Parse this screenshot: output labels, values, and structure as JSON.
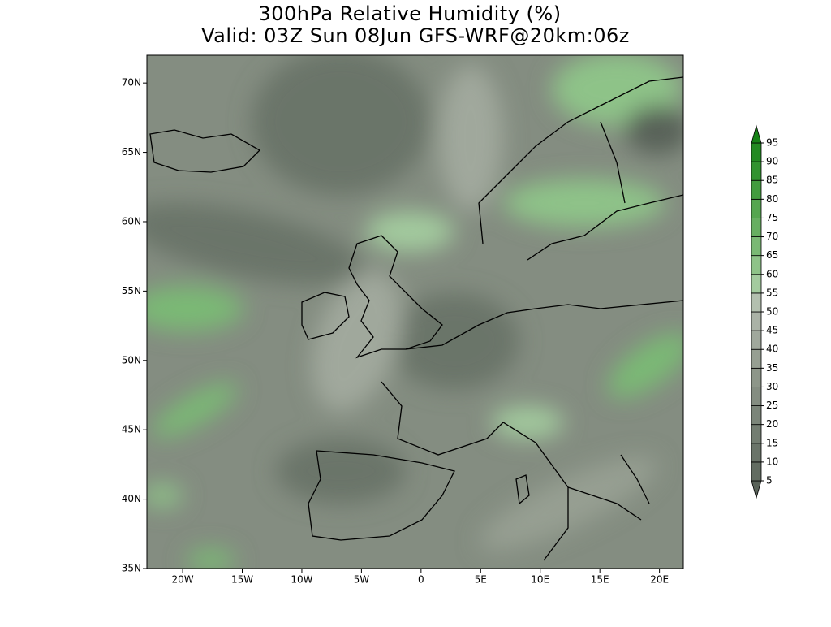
{
  "title": "300hPa Relative Humidity (%)",
  "subtitle": "Valid: 03Z Sun 08Jun GFS-WRF@20km:06z",
  "map": {
    "lonlim": [
      -23,
      22
    ],
    "latlim": [
      35,
      72
    ],
    "lat_ticks": [
      {
        "value": 35,
        "label": "35N"
      },
      {
        "value": 40,
        "label": "40N"
      },
      {
        "value": 45,
        "label": "45N"
      },
      {
        "value": 50,
        "label": "50N"
      },
      {
        "value": 55,
        "label": "55N"
      },
      {
        "value": 60,
        "label": "60N"
      },
      {
        "value": 65,
        "label": "65N"
      },
      {
        "value": 70,
        "label": "70N"
      }
    ],
    "lon_ticks": [
      {
        "value": -20,
        "label": "20W"
      },
      {
        "value": -15,
        "label": "15W"
      },
      {
        "value": -10,
        "label": "10W"
      },
      {
        "value": -5,
        "label": "5W"
      },
      0,
      {
        "value": 5,
        "label": "5E"
      },
      {
        "value": 10,
        "label": "10E"
      },
      {
        "value": 15,
        "label": "15E"
      },
      {
        "value": 20,
        "label": "20E"
      }
    ]
  },
  "colorbar": {
    "levels": [
      5,
      10,
      15,
      20,
      25,
      30,
      35,
      40,
      45,
      50,
      55,
      60,
      65,
      70,
      75,
      80,
      85,
      90,
      95
    ],
    "colors": [
      "#596259",
      "#626c61",
      "#6a7469",
      "#737d71",
      "#7b8579",
      "#848d81",
      "#8d9689",
      "#969f92",
      "#a0a89c",
      "#aab2a6",
      "#b3c0af",
      "#a3cb9e",
      "#8ec388",
      "#7ab974",
      "#67af61",
      "#55a64f",
      "#429c3e",
      "#31932f",
      "#228a21",
      "#168216"
    ]
  }
}
